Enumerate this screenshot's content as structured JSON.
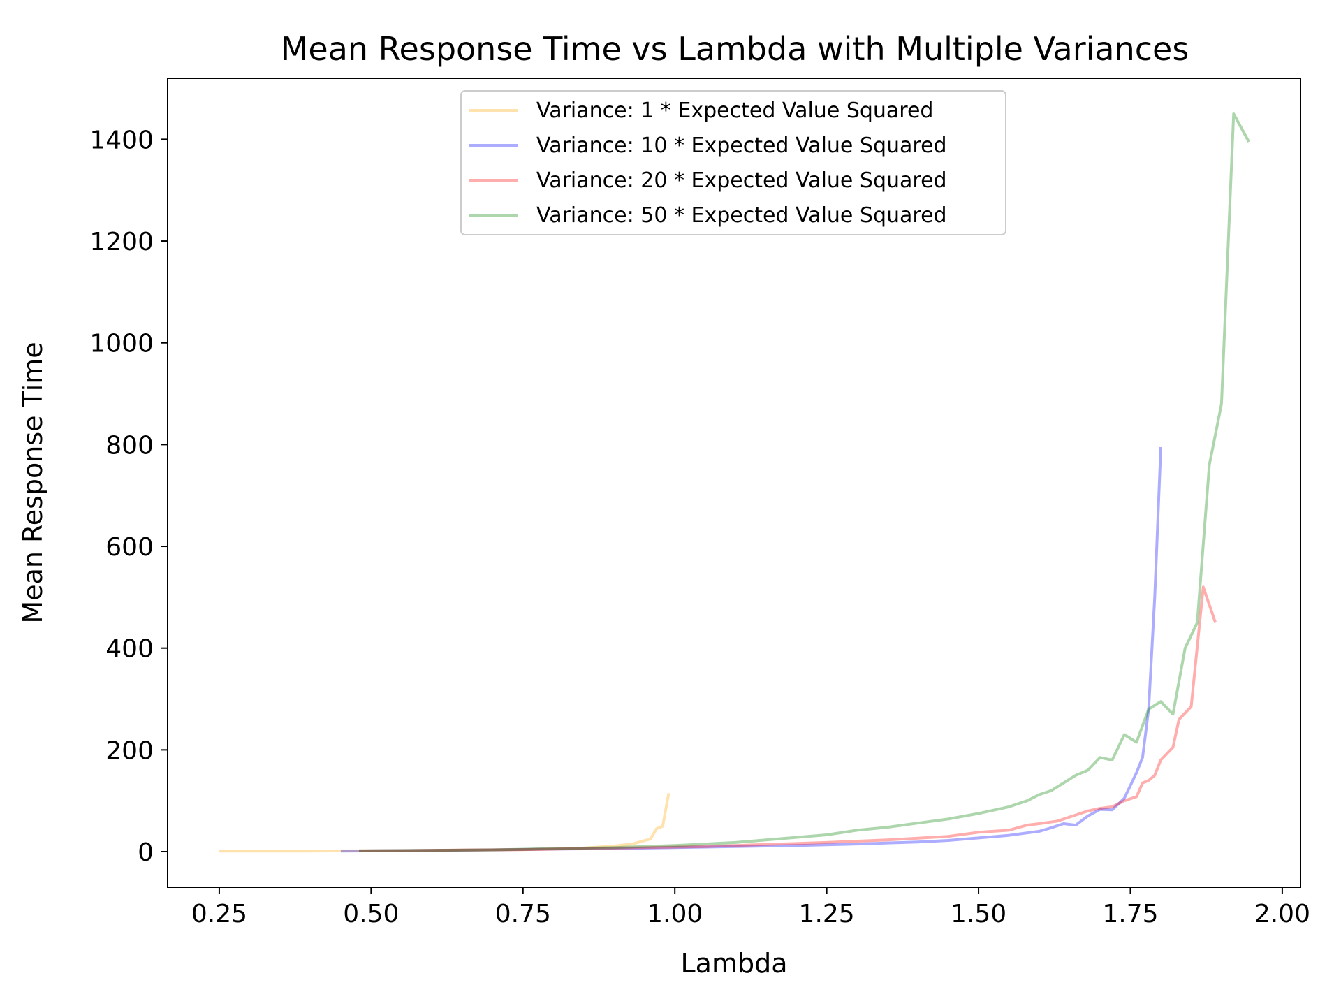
{
  "chart_data": {
    "type": "line",
    "title": "Mean Response Time vs Lambda with Multiple Variances",
    "xlabel": "Lambda",
    "ylabel": "Mean Response Time",
    "xlim": [
      0.165,
      2.03
    ],
    "ylim": [
      -70,
      1520
    ],
    "xticks": [
      0.25,
      0.5,
      0.75,
      1.0,
      1.25,
      1.5,
      1.75,
      2.0
    ],
    "xtick_labels": [
      "0.25",
      "0.50",
      "0.75",
      "1.00",
      "1.25",
      "1.50",
      "1.75",
      "2.00"
    ],
    "yticks": [
      0,
      200,
      400,
      600,
      800,
      1000,
      1200,
      1400
    ],
    "ytick_labels": [
      "0",
      "200",
      "400",
      "600",
      "800",
      "1000",
      "1200",
      "1400"
    ],
    "grid": false,
    "legend_position": "upper-center",
    "series": [
      {
        "name": "Variance: 1 * Expected Value Squared",
        "color": "#ffa500",
        "x": [
          0.25,
          0.3,
          0.35,
          0.4,
          0.45,
          0.5,
          0.55,
          0.6,
          0.65,
          0.7,
          0.75,
          0.8,
          0.85,
          0.9,
          0.93,
          0.96,
          0.97,
          0.98,
          0.99
        ],
        "y": [
          1,
          1,
          1,
          1,
          1.5,
          1.5,
          2,
          2.5,
          3,
          3.5,
          4,
          5,
          7,
          11,
          15,
          25,
          45,
          50,
          115
        ]
      },
      {
        "name": "Variance: 10 * Expected Value Squared",
        "color": "#0000ff",
        "x": [
          0.45,
          0.5,
          0.6,
          0.7,
          0.8,
          0.9,
          1.0,
          1.1,
          1.2,
          1.3,
          1.4,
          1.45,
          1.5,
          1.55,
          1.6,
          1.62,
          1.64,
          1.66,
          1.68,
          1.7,
          1.72,
          1.74,
          1.76,
          1.77,
          1.78,
          1.79,
          1.8
        ],
        "y": [
          1,
          1.5,
          2.5,
          3.5,
          5,
          6,
          8,
          10,
          12,
          15,
          19,
          22,
          27,
          32,
          40,
          47,
          55,
          52,
          70,
          83,
          82,
          105,
          155,
          185,
          280,
          500,
          795
        ]
      },
      {
        "name": "Variance: 20 * Expected Value Squared",
        "color": "#ff0000",
        "x": [
          0.48,
          0.55,
          0.65,
          0.75,
          0.85,
          0.95,
          1.05,
          1.15,
          1.25,
          1.35,
          1.45,
          1.5,
          1.55,
          1.58,
          1.6,
          1.63,
          1.66,
          1.68,
          1.7,
          1.72,
          1.74,
          1.76,
          1.77,
          1.78,
          1.79,
          1.8,
          1.82,
          1.83,
          1.85,
          1.87,
          1.89
        ],
        "y": [
          1.5,
          2,
          3,
          4,
          6,
          8,
          10,
          14,
          18,
          23,
          30,
          38,
          42,
          52,
          55,
          60,
          72,
          80,
          85,
          88,
          100,
          108,
          135,
          140,
          150,
          180,
          205,
          260,
          285,
          520,
          450
        ]
      },
      {
        "name": "Variance: 50 * Expected Value Squared",
        "color": "#008000",
        "x": [
          0.48,
          0.6,
          0.7,
          0.8,
          0.9,
          1.0,
          1.1,
          1.2,
          1.25,
          1.3,
          1.35,
          1.4,
          1.45,
          1.5,
          1.55,
          1.58,
          1.6,
          1.62,
          1.64,
          1.66,
          1.68,
          1.7,
          1.72,
          1.74,
          1.76,
          1.78,
          1.8,
          1.82,
          1.84,
          1.86,
          1.88,
          1.9,
          1.92,
          1.945
        ],
        "y": [
          1.5,
          2.5,
          3.5,
          6,
          8,
          12,
          18,
          28,
          33,
          42,
          48,
          56,
          64,
          75,
          88,
          100,
          112,
          120,
          135,
          150,
          160,
          185,
          180,
          230,
          215,
          280,
          295,
          270,
          400,
          450,
          760,
          880,
          1450,
          1395
        ]
      }
    ]
  }
}
